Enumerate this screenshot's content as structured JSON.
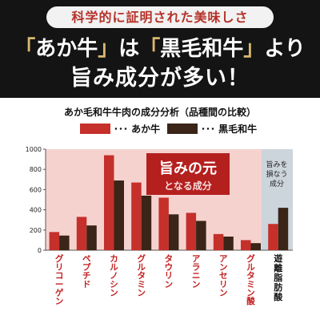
{
  "header": {
    "subtitle": "科学的に証明された美味しさ",
    "headline_line1": {
      "open_a": "「",
      "aka": "あか牛",
      "close_a": "」",
      "wa": "は",
      "open_b": "「",
      "kuroge": "黒毛和牛",
      "close_b": "」",
      "yori": "より"
    },
    "headline_line2": "旨み成分が多い！"
  },
  "colors": {
    "header_bg": "#141414",
    "gold": "#d9b870",
    "aka_bar": "#c5302b",
    "kuroge_bar": "#3a2518",
    "highlight_bg": "#f6d2cf",
    "negative_bg": "#ccd4dc",
    "badge_bg": "#b4201e",
    "label_red": "#c21f1f"
  },
  "chart_data": {
    "type": "bar",
    "title": "あか毛和牛牛肉の成分分析（品種間の比較）",
    "categories": [
      "グリコーゲン",
      "ペプチド",
      "カルノシン",
      "グルタミン",
      "タウリン",
      "アラニン",
      "アンセリン",
      "グルタミン酸",
      "遊離脂肪酸"
    ],
    "series": [
      {
        "name": "･･･ あか牛",
        "values": [
          180,
          330,
          940,
          670,
          520,
          370,
          160,
          100,
          260
        ]
      },
      {
        "name": "･･･ 黒毛和牛",
        "values": [
          145,
          245,
          690,
          540,
          355,
          290,
          135,
          70,
          420
        ]
      }
    ],
    "ylim": [
      0,
      1000
    ],
    "yticks": [
      "0",
      "200",
      "400",
      "600",
      "800",
      "1000"
    ],
    "grid": false,
    "legend": "top",
    "annotations": {
      "umami_badge_main": "旨みの元",
      "umami_badge_sub": "となる成分",
      "negative_line1": "旨みを",
      "negative_line2": "損なう",
      "negative_line3": "成分"
    }
  }
}
